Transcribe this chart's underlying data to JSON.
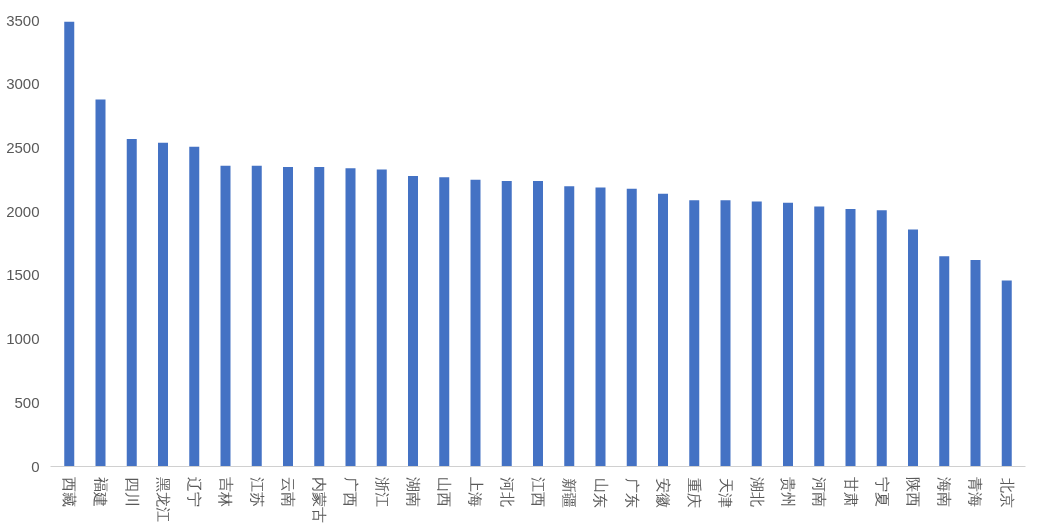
{
  "chart_data": {
    "type": "bar",
    "categories": [
      "西藏",
      "福建",
      "四川",
      "黑龙江",
      "辽宁",
      "吉林",
      "江苏",
      "云南",
      "内蒙古",
      "广西",
      "浙江",
      "湖南",
      "山西",
      "上海",
      "河北",
      "江西",
      "新疆",
      "山东",
      "广东",
      "安徽",
      "重庆",
      "天津",
      "湖北",
      "贵州",
      "河南",
      "甘肃",
      "宁夏",
      "陕西",
      "海南",
      "青海",
      "北京"
    ],
    "values": [
      3490,
      2880,
      2570,
      2540,
      2510,
      2360,
      2360,
      2350,
      2350,
      2340,
      2330,
      2280,
      2270,
      2250,
      2240,
      2240,
      2200,
      2190,
      2180,
      2140,
      2090,
      2090,
      2080,
      2070,
      2040,
      2020,
      2010,
      1860,
      1650,
      1620,
      1460
    ],
    "color": "#4472c4",
    "ylim": [
      0,
      3500
    ],
    "yticks": [
      0,
      500,
      1000,
      1500,
      2000,
      2500,
      3000,
      3500
    ],
    "grid": false
  }
}
